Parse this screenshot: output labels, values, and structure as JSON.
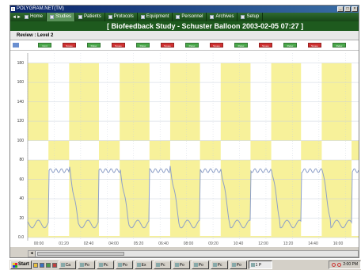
{
  "window": {
    "title": "POLYGRAM.NET(TM)"
  },
  "win_controls": [
    "_",
    "□",
    "×"
  ],
  "nav": {
    "items": [
      {
        "label": "Home",
        "icon": "home-icon",
        "active": false
      },
      {
        "label": "Studies",
        "icon": "studies-icon",
        "active": true
      },
      {
        "label": "Patients",
        "icon": "patients-icon",
        "active": false
      },
      {
        "label": "Protocols",
        "icon": "protocols-icon",
        "active": false
      },
      {
        "label": "Equipment",
        "icon": "equipment-icon",
        "active": false
      },
      {
        "label": "Personnel",
        "icon": "personnel-icon",
        "active": false
      },
      {
        "label": "Archives",
        "icon": "archives-icon",
        "active": false
      },
      {
        "label": "Setup",
        "icon": "setup-icon",
        "active": false
      }
    ]
  },
  "study": {
    "title": "[ Biofeedback Study - Schuster Balloon   2003-02-05  07:27 ]"
  },
  "review": {
    "label": "Review : Level 2"
  },
  "events": [
    {
      "label": "Cont",
      "color": "green"
    },
    {
      "label": "Squee",
      "color": "red"
    },
    {
      "label": "Relax",
      "color": "green"
    },
    {
      "label": "Squee",
      "color": "red"
    },
    {
      "label": "Relax",
      "color": "green"
    },
    {
      "label": "Squee",
      "color": "red"
    },
    {
      "label": "Relax",
      "color": "green"
    },
    {
      "label": "Squee",
      "color": "red"
    },
    {
      "label": "Relax",
      "color": "green"
    },
    {
      "label": "Squee",
      "color": "red"
    },
    {
      "label": "Relax",
      "color": "green"
    },
    {
      "label": "Squee",
      "color": "red"
    },
    {
      "label": "Relax",
      "color": "green"
    }
  ],
  "chart": {
    "y_ticks": [
      "180",
      "160",
      "140",
      "120",
      "100",
      "80",
      "60",
      "40",
      "20",
      "0.0"
    ],
    "x_ticks": [
      "00:00",
      "01:20",
      "02:40",
      "04:00",
      "05:20",
      "06:40",
      "08:00",
      "09:20",
      "10:40",
      "12:00",
      "13:20",
      "14:40",
      "16:00"
    ],
    "fill_color": "#f7f19a",
    "line_color": "#8ea0c8",
    "grid_color": "#c8d0dc"
  },
  "taskbar": {
    "start_label": "Start",
    "tasks": [
      "Ca",
      "Po",
      "Pc",
      "Po",
      "Ex",
      "Pc",
      "Po",
      "Po",
      "Pc",
      "Po",
      "1 P"
    ],
    "active_index": 10,
    "clock": "2:00 PM"
  }
}
